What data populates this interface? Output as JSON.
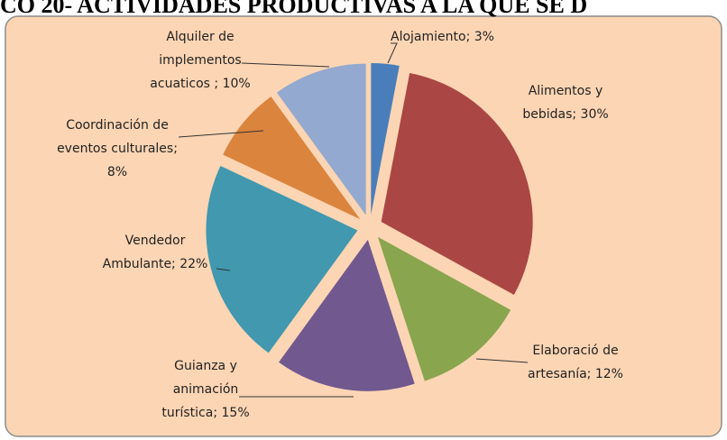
{
  "chart_data": {
    "type": "pie",
    "title": "CO 20- ACTIVIDADES PRODUCTIVAS A LA QUE SE D",
    "labels": [
      [
        "Alojamiento; 3%"
      ],
      [
        "Alimentos y",
        "bebidas; 30%"
      ],
      [
        "Elaboració de",
        "artesanía; 12%"
      ],
      [
        "Guianza y",
        "animación",
        "turística; 15%"
      ],
      [
        "Vendedor",
        "Ambulante; 22%"
      ],
      [
        "Coordinación de",
        "eventos culturales;",
        "8%"
      ],
      [
        "Alquiler de",
        "implementos",
        "acuaticos  ; 10%"
      ]
    ],
    "values": [
      3,
      30,
      12,
      15,
      22,
      8,
      10
    ],
    "colors": [
      "#4a7ebb",
      "#aa4643",
      "#89a54e",
      "#71588f",
      "#4198af",
      "#db843d",
      "#93a9cf"
    ]
  }
}
